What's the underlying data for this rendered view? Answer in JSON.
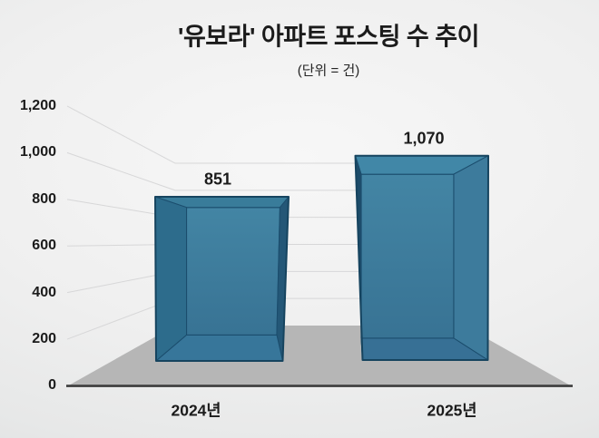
{
  "title": "'유보라' 아파트 포스팅 수 추이",
  "subtitle": "(단위 = 건)",
  "chart_data": {
    "type": "bar",
    "style": "3d-column-perspective",
    "title": "'유보라' 아파트 포스팅 수 추이",
    "subtitle": "(단위 = 건)",
    "unit": "건",
    "categories": [
      "2024년",
      "2025년"
    ],
    "values": [
      851,
      1070
    ],
    "value_labels": [
      "851",
      "1,070"
    ],
    "xlabel": "",
    "ylabel": "",
    "ylim": [
      0,
      1200
    ],
    "ytick_step": 200,
    "ytick_labels": [
      "0",
      "200",
      "400",
      "600",
      "800",
      "1,000",
      "1,200"
    ],
    "grid": true,
    "legend": false,
    "colors": {
      "bar_face": "#3d7e9e",
      "bar_edge": "#16445f",
      "floor": "#b6b6b6",
      "axis_line": "#3c3c3c",
      "gridline": "#d7d7d8",
      "text": "#1b1b1b"
    }
  }
}
